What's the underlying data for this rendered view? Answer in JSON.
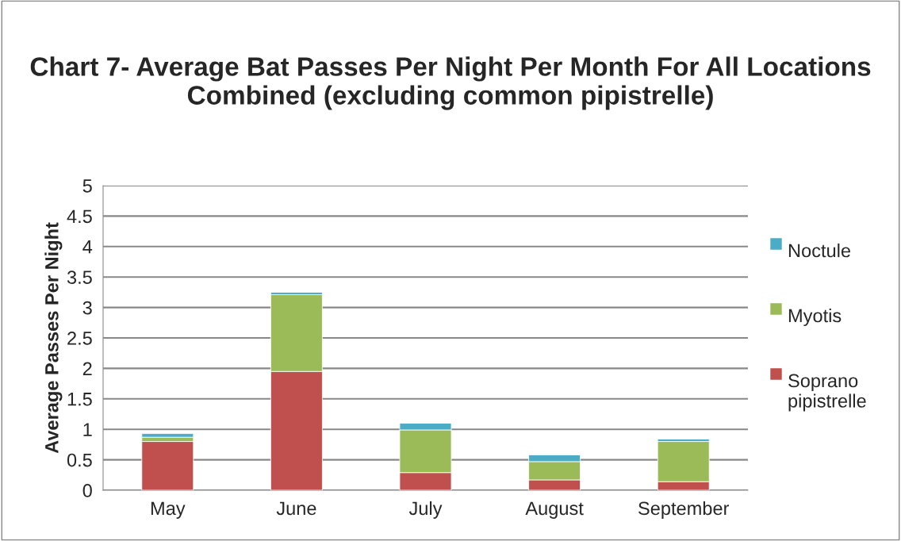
{
  "chart_data": {
    "type": "bar",
    "stacked": true,
    "title": "Chart 7- Average Bat Passes Per Night Per Month For All Locations Combined (excluding common pipistrelle)",
    "ylabel": "Average Passes Per Night",
    "categories": [
      "May",
      "June",
      "July",
      "August",
      "September"
    ],
    "series": [
      {
        "name": "Soprano pipistrelle",
        "color": "#c0504d",
        "values": [
          0.8,
          1.95,
          0.29,
          0.17,
          0.14
        ]
      },
      {
        "name": "Myotis",
        "color": "#9bbb59",
        "values": [
          0.07,
          1.26,
          0.7,
          0.3,
          0.66
        ]
      },
      {
        "name": "Noctule",
        "color": "#4bacc6",
        "values": [
          0.06,
          0.04,
          0.11,
          0.11,
          0.04
        ]
      }
    ],
    "ylim": [
      0,
      5
    ],
    "yticks": [
      0,
      0.5,
      1,
      1.5,
      2,
      2.5,
      3,
      3.5,
      4,
      4.5,
      5
    ],
    "grid": "y",
    "legend": "right"
  }
}
